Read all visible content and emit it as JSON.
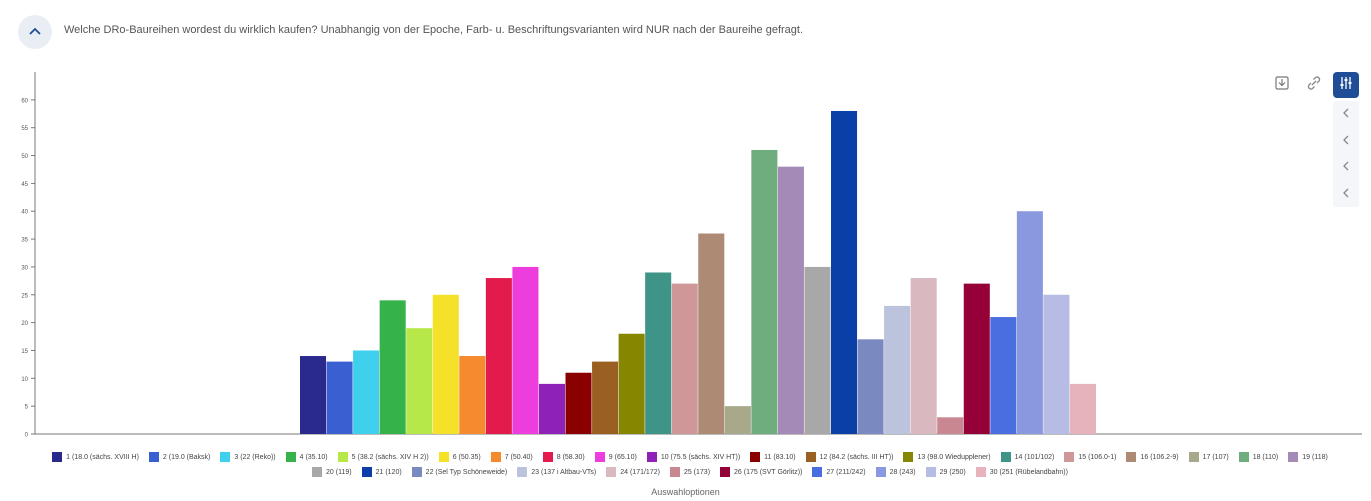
{
  "header": {
    "question": "Welche DRo-Baureihen wordest du wirklich kaufen? Unabhangig von der Epoche, Farb- u. Beschriftungsvarianten wird NUR nach der Baureihe gefragt."
  },
  "icons": {
    "collapse": "chevron-up-icon",
    "download": "download-icon",
    "link": "link-icon",
    "settings": "sliders-icon",
    "side": "chevron-left-icon"
  },
  "chart_data": {
    "type": "bar",
    "xlabel": "Auswahloptionen",
    "ylabel": "",
    "ylim": [
      0,
      65
    ],
    "yticks": [
      0,
      5,
      10,
      15,
      20,
      25,
      30,
      35,
      40,
      45,
      50,
      55,
      60
    ],
    "grid": false,
    "legend": "bottom",
    "categories": [
      "1 (18.0 (sächs. XVIII H)",
      "2 (19.0 (Baksk)",
      "3 (22 (Reko))",
      "4 (35.10)",
      "5 (38.2 (sächs. XIV H 2))",
      "6 (50.35)",
      "7 (50.40)",
      "8 (58.30)",
      "9 (65.10)",
      "10 (75.5 (sächs. XIV HT))",
      "11 (83.10)",
      "12 (84.2 (sächs. III HT))",
      "13 (98.0 Wiedupplener)",
      "14 (101/102)",
      "15 (106.0-1)",
      "16 (106.2-9)",
      "17 (107)",
      "18 (110)",
      "19 (118)",
      "20 (119)",
      "21 (120)",
      "22 (Sel Typ Schöneweide)",
      "23 (137 i Altbau-VTs)",
      "24 (171/172)",
      "25 (173)",
      "26 (175 (SVT Görlitz))",
      "27 (211/242)",
      "28 (243)",
      "29 (250)",
      "30 (251 (Rübelandbahn))"
    ],
    "values": [
      14,
      13,
      15,
      24,
      19,
      25,
      14,
      28,
      30,
      9,
      11,
      13,
      18,
      29,
      27,
      36,
      5,
      51,
      48,
      30,
      58,
      17,
      23,
      28,
      3,
      27,
      21,
      40,
      25,
      9
    ],
    "colors": [
      "#2a2a8c",
      "#3a5fd0",
      "#3fd0ee",
      "#35b24a",
      "#b7e84a",
      "#f5e12a",
      "#f58a2e",
      "#e31b4c",
      "#ee3ddd",
      "#8e22b8",
      "#8a0000",
      "#996022",
      "#868600",
      "#3f9488",
      "#cf9797",
      "#ad8a74",
      "#a8a88a",
      "#6fad7f",
      "#a38ab7",
      "#a8a8a8",
      "#0a3fa8",
      "#7a8ac0",
      "#bcc3dc",
      "#d9b8c0",
      "#c98791",
      "#950038",
      "#4a6ee0",
      "#8a98e0",
      "#b6bce3",
      "#e6b2bc"
    ]
  }
}
